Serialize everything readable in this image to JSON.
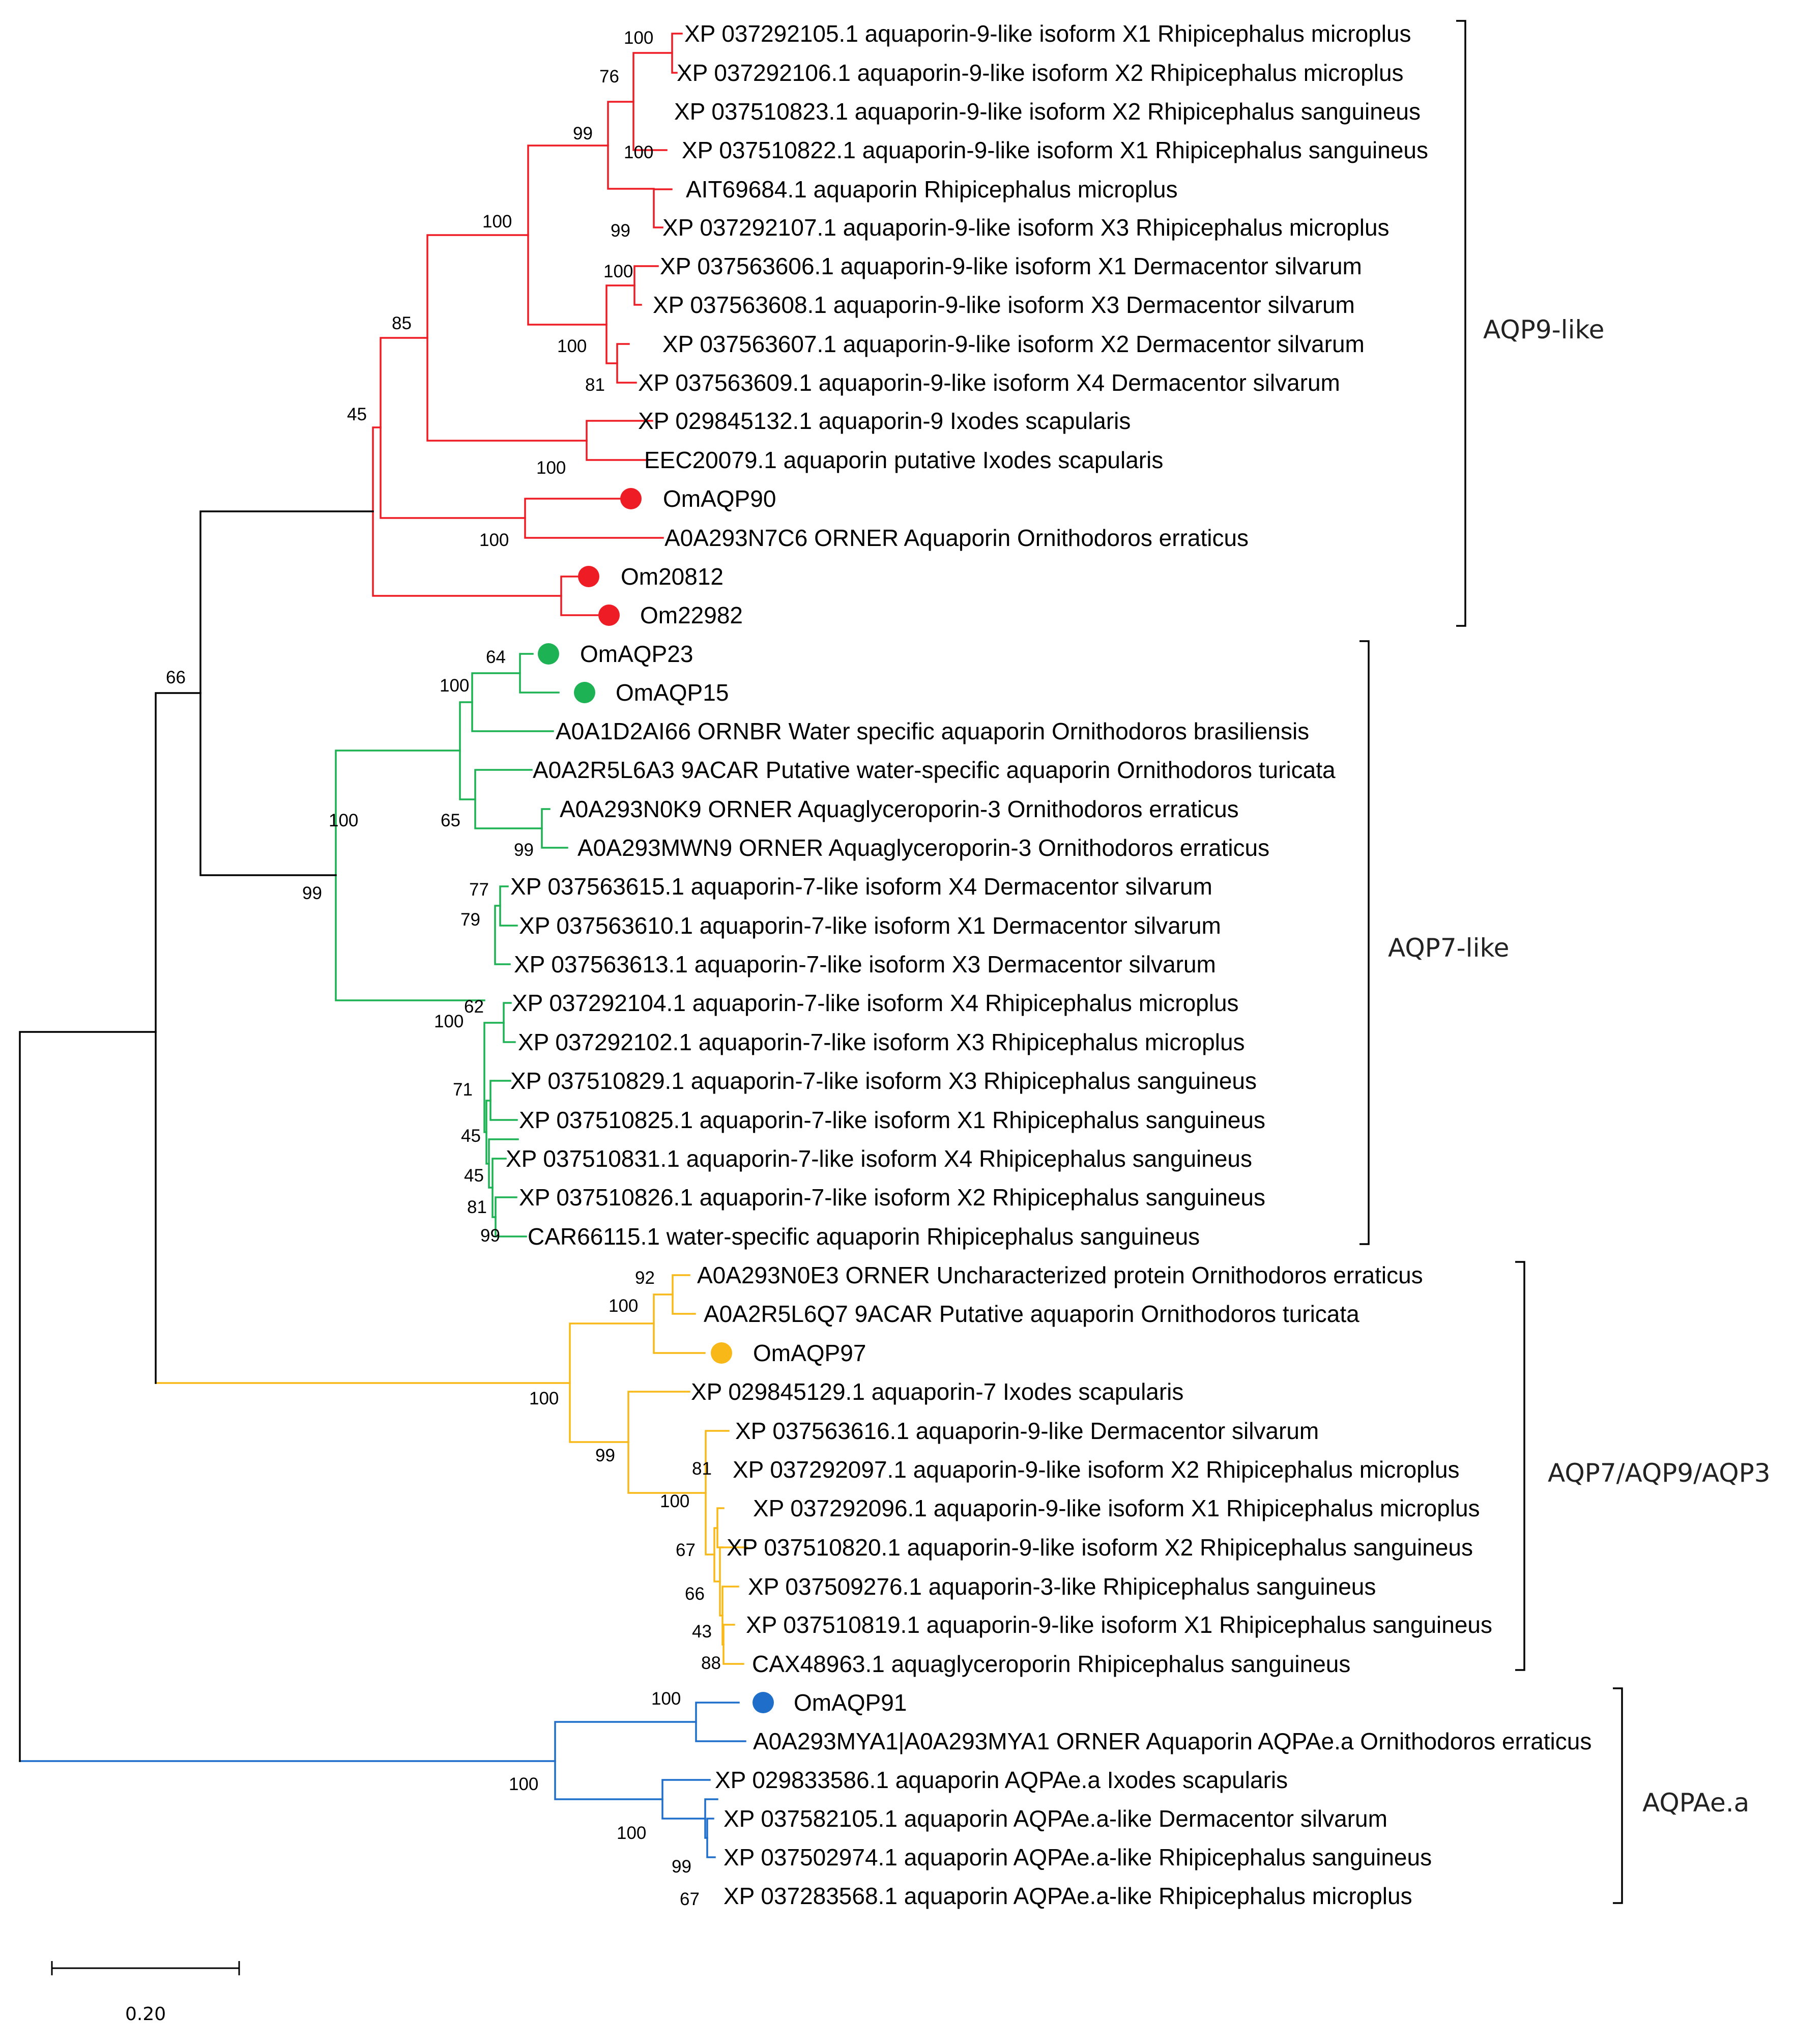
{
  "colors": {
    "aqp9_like": "#ee1c24",
    "aqp7_like": "#1db254",
    "aqp7_9_3": "#f7b818",
    "aqpae_a": "#1f6fca",
    "root": "#000000"
  },
  "clades": [
    {
      "id": "aqp9",
      "label": "AQP9-like"
    },
    {
      "id": "aqp7",
      "label": "AQP7-like"
    },
    {
      "id": "aqp793",
      "label": "AQP7/AQP9/AQP3"
    },
    {
      "id": "aqpae",
      "label": "AQPAe.a"
    }
  ],
  "scale_bar": {
    "label": "0.20"
  },
  "taxa": [
    {
      "label": "XP 037292105.1 aquaporin-9-like isoform X1 Rhipicephalus microplus"
    },
    {
      "label": "XP 037292106.1 aquaporin-9-like isoform X2 Rhipicephalus microplus"
    },
    {
      "label": "XP 037510823.1 aquaporin-9-like isoform X2 Rhipicephalus sanguineus"
    },
    {
      "label": "XP 037510822.1 aquaporin-9-like isoform X1 Rhipicephalus sanguineus"
    },
    {
      "label": "AIT69684.1 aquaporin Rhipicephalus microplus"
    },
    {
      "label": "XP 037292107.1 aquaporin-9-like isoform X3 Rhipicephalus microplus"
    },
    {
      "label": "XP 037563606.1 aquaporin-9-like isoform X1 Dermacentor silvarum"
    },
    {
      "label": "XP 037563608.1 aquaporin-9-like isoform X3 Dermacentor silvarum"
    },
    {
      "label": "XP 037563607.1 aquaporin-9-like isoform X2 Dermacentor silvarum"
    },
    {
      "label": "XP 037563609.1 aquaporin-9-like isoform X4 Dermacentor silvarum"
    },
    {
      "label": "XP 029845132.1 aquaporin-9 Ixodes scapularis"
    },
    {
      "label": "EEC20079.1 aquaporin putative Ixodes scapularis"
    },
    {
      "label": "OmAQP90",
      "marker": "aqp9_like"
    },
    {
      "label": "A0A293N7C6 ORNER Aquaporin Ornithodoros erraticus"
    },
    {
      "label": "Om20812",
      "marker": "aqp9_like"
    },
    {
      "label": "Om22982",
      "marker": "aqp9_like"
    },
    {
      "label": "OmAQP23",
      "marker": "aqp7_like"
    },
    {
      "label": "OmAQP15",
      "marker": "aqp7_like"
    },
    {
      "label": "A0A1D2AI66 ORNBR Water specific aquaporin Ornithodoros brasiliensis"
    },
    {
      "label": "A0A2R5L6A3 9ACAR Putative water-specific aquaporin Ornithodoros turicata"
    },
    {
      "label": "A0A293N0K9 ORNER Aquaglyceroporin-3 Ornithodoros erraticus"
    },
    {
      "label": "A0A293MWN9 ORNER Aquaglyceroporin-3 Ornithodoros erraticus"
    },
    {
      "label": "XP 037563615.1 aquaporin-7-like isoform X4 Dermacentor silvarum"
    },
    {
      "label": "XP 037563610.1 aquaporin-7-like isoform X1 Dermacentor silvarum"
    },
    {
      "label": "XP 037563613.1 aquaporin-7-like isoform X3 Dermacentor silvarum"
    },
    {
      "label": "XP 037292104.1 aquaporin-7-like isoform X4 Rhipicephalus microplus"
    },
    {
      "label": "XP 037292102.1 aquaporin-7-like isoform X3 Rhipicephalus microplus"
    },
    {
      "label": "XP 037510829.1 aquaporin-7-like isoform X3 Rhipicephalus sanguineus"
    },
    {
      "label": "XP 037510825.1 aquaporin-7-like isoform X1 Rhipicephalus sanguineus"
    },
    {
      "label": "XP 037510831.1 aquaporin-7-like isoform X4 Rhipicephalus sanguineus"
    },
    {
      "label": "XP 037510826.1 aquaporin-7-like isoform X2 Rhipicephalus sanguineus"
    },
    {
      "label": "CAR66115.1 water-specific aquaporin Rhipicephalus sanguineus"
    },
    {
      "label": "A0A293N0E3 ORNER Uncharacterized protein Ornithodoros erraticus"
    },
    {
      "label": "A0A2R5L6Q7 9ACAR Putative aquaporin Ornithodoros turicata"
    },
    {
      "label": "OmAQP97",
      "marker": "aqp7_9_3"
    },
    {
      "label": "XP 029845129.1 aquaporin-7 Ixodes scapularis"
    },
    {
      "label": "XP 037563616.1 aquaporin-9-like Dermacentor silvarum"
    },
    {
      "label": "XP 037292097.1 aquaporin-9-like isoform X2 Rhipicephalus microplus"
    },
    {
      "label": "XP 037292096.1 aquaporin-9-like isoform X1 Rhipicephalus microplus"
    },
    {
      "label": "XP 037510820.1 aquaporin-9-like isoform X2 Rhipicephalus sanguineus"
    },
    {
      "label": "XP 037509276.1 aquaporin-3-like Rhipicephalus sanguineus"
    },
    {
      "label": "XP 037510819.1 aquaporin-9-like isoform X1 Rhipicephalus sanguineus"
    },
    {
      "label": "CAX48963.1 aquaglyceroporin Rhipicephalus sanguineus"
    },
    {
      "label": "OmAQP91",
      "marker": "aqpae_a"
    },
    {
      "label": "A0A293MYA1|A0A293MYA1 ORNER Aquaporin AQPAe.a Ornithodoros erraticus"
    },
    {
      "label": "XP 029833586.1 aquaporin AQPAe.a Ixodes scapularis"
    },
    {
      "label": "XP 037582105.1 aquaporin AQPAe.a-like Dermacentor silvarum"
    },
    {
      "label": "XP 037502974.1 aquaporin AQPAe.a-like Rhipicephalus sanguineus"
    },
    {
      "label": "XP 037283568.1 aquaporin AQPAe.a-like Rhipicephalus microplus"
    }
  ],
  "bootstrap": [
    "100",
    "76",
    "99",
    "100",
    "99",
    "100",
    "100",
    "81",
    "100",
    "85",
    "45",
    "100",
    "100",
    "66",
    "99",
    "64",
    "100",
    "65",
    "100",
    "99",
    "77",
    "79",
    "62",
    "100",
    "71",
    "45",
    "45",
    "81",
    "99",
    "92",
    "100",
    "100",
    "99",
    "81",
    "100",
    "67",
    "66",
    "43",
    "88",
    "100",
    "100",
    "100",
    "99",
    "67"
  ]
}
